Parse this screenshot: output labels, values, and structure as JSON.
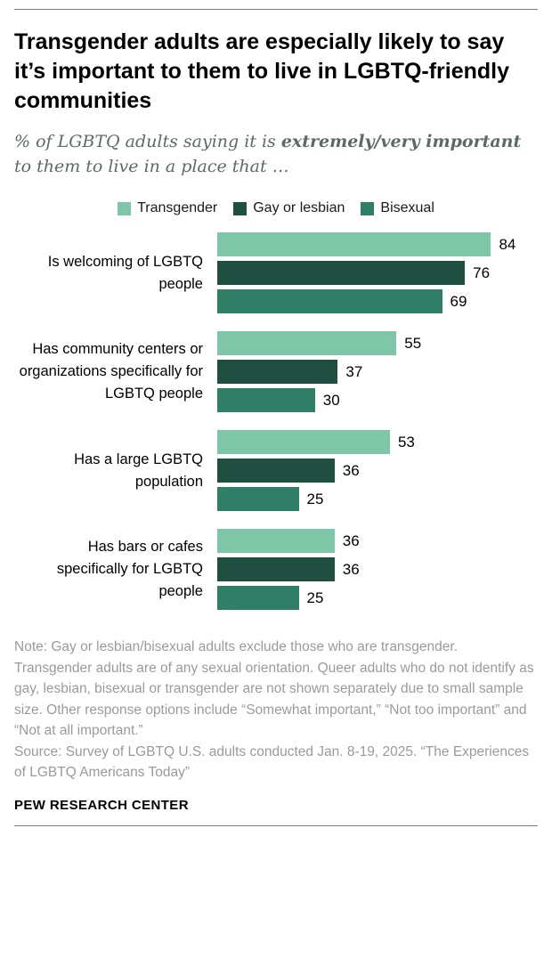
{
  "header": {
    "title": "Transgender adults are especially likely to say it’s important to them to live in LGBTQ-friendly communities",
    "subtitle_prefix": "% of LGBTQ adults saying it is ",
    "subtitle_bold": "extremely/very important",
    "subtitle_suffix": " to them to live in a place that …"
  },
  "chart_data": {
    "type": "bar",
    "orientation": "horizontal",
    "unit": "%",
    "legend_position": "top",
    "value_labels": true,
    "xlim": [
      0,
      100
    ],
    "series": [
      "Transgender",
      "Gay or lesbian",
      "Bisexual"
    ],
    "series_colors": [
      "#7ec6a8",
      "#1e4f40",
      "#2f7e66"
    ],
    "groups": [
      {
        "category": "Is welcoming of LGBTQ people",
        "values": [
          84,
          76,
          69
        ]
      },
      {
        "category": "Has community centers or organizations specifically for LGBTQ people",
        "values": [
          55,
          37,
          30
        ]
      },
      {
        "category": "Has a large LGBTQ population",
        "values": [
          53,
          36,
          25
        ]
      },
      {
        "category": "Has bars or cafes specifically for LGBTQ people",
        "values": [
          36,
          36,
          25
        ]
      }
    ]
  },
  "notes": {
    "note": "Note: Gay or lesbian/bisexual adults exclude those who are transgender. Transgender adults are of any sexual orientation. Queer adults who do not identify as gay, lesbian, bisexual or transgender are not shown separately due to small sample size. Other response options include “Somewhat important,” “Not too important” and “Not at all important.”",
    "source": "Source: Survey of LGBTQ U.S. adults conducted Jan. 8-19, 2025. “The Experiences of LGBTQ Americans Today”"
  },
  "footer": {
    "brand": "PEW RESEARCH CENTER"
  }
}
